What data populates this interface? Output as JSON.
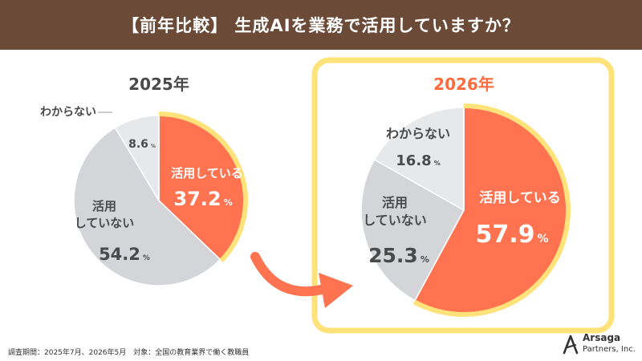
{
  "header": {
    "title": "【前年比較】 生成AIを業務で活用していますか？"
  },
  "footnote": "調査期間：2025年7月、2026年5月　対象：全国の教育業界で働く教職員",
  "brand": {
    "name": "Arsaga",
    "sub": "Partners, Inc."
  },
  "colors": {
    "header_bg": "#6b4a38",
    "using": "#ff7350",
    "not_using": "#d4d5d9",
    "unknown": "#e7e8ea",
    "highlight": "#ffe27a",
    "accent_text": "#ff6b3d",
    "arrow": "#ff7350",
    "dark_text": "#4a4a4a"
  },
  "chart_data": [
    {
      "type": "pie",
      "title": "2025年",
      "unit": "%",
      "slices": [
        {
          "label": "活用している",
          "value": 37.2
        },
        {
          "label": "活用していない",
          "value": 54.2
        },
        {
          "label": "わからない",
          "value": 8.6
        }
      ]
    },
    {
      "type": "pie",
      "title": "2026年",
      "unit": "%",
      "slices": [
        {
          "label": "活用している",
          "value": 57.9
        },
        {
          "label": "活用していない",
          "value": 25.3
        },
        {
          "label": "わからない",
          "value": 16.8
        }
      ]
    }
  ]
}
